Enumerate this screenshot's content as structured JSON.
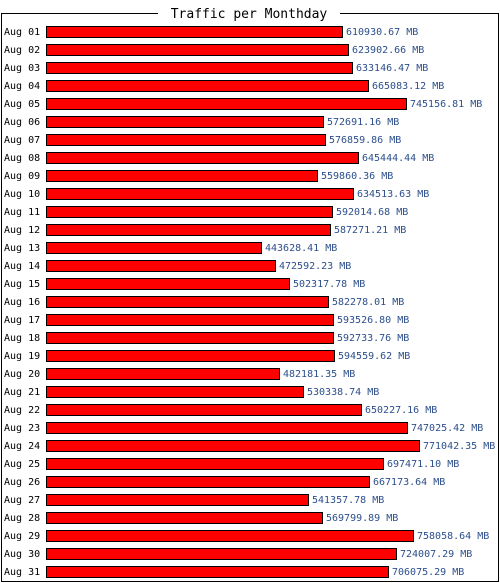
{
  "chart_data": {
    "type": "bar",
    "orientation": "horizontal",
    "title": "Traffic per Monthday",
    "unit": "MB",
    "xlim": [
      0,
      771042.35
    ],
    "grid": false,
    "legend": "none",
    "colors": {
      "bar": "#ff0000",
      "bar_border": "#000000",
      "value_label": "#2b4e8c",
      "frame": "#000000"
    },
    "categories": [
      "Aug 01",
      "Aug 02",
      "Aug 03",
      "Aug 04",
      "Aug 05",
      "Aug 06",
      "Aug 07",
      "Aug 08",
      "Aug 09",
      "Aug 10",
      "Aug 11",
      "Aug 12",
      "Aug 13",
      "Aug 14",
      "Aug 15",
      "Aug 16",
      "Aug 17",
      "Aug 18",
      "Aug 19",
      "Aug 20",
      "Aug 21",
      "Aug 22",
      "Aug 23",
      "Aug 24",
      "Aug 25",
      "Aug 26",
      "Aug 27",
      "Aug 28",
      "Aug 29",
      "Aug 30",
      "Aug 31"
    ],
    "values": [
      610930.67,
      623902.66,
      633146.47,
      665083.12,
      745156.81,
      572691.16,
      576859.86,
      645444.44,
      559860.36,
      634513.63,
      592014.68,
      587271.21,
      443628.41,
      472592.23,
      502317.78,
      582278.01,
      593526.8,
      592733.76,
      594559.62,
      482181.35,
      530338.74,
      650227.16,
      747025.42,
      771042.35,
      697471.1,
      667173.64,
      541357.78,
      569799.89,
      758058.64,
      724007.29,
      706075.29
    ],
    "value_labels": [
      "610930.67 MB",
      "623902.66 MB",
      "633146.47 MB",
      "665083.12 MB",
      "745156.81 MB",
      "572691.16 MB",
      "576859.86 MB",
      "645444.44 MB",
      "559860.36 MB",
      "634513.63 MB",
      "592014.68 MB",
      "587271.21 MB",
      "443628.41 MB",
      "472592.23 MB",
      "502317.78 MB",
      "582278.01 MB",
      "593526.80 MB",
      "592733.76 MB",
      "594559.62 MB",
      "482181.35 MB",
      "530338.74 MB",
      "650227.16 MB",
      "747025.42 MB",
      "771042.35 MB",
      "697471.10 MB",
      "667173.64 MB",
      "541357.78 MB",
      "569799.89 MB",
      "758058.64 MB",
      "724007.29 MB",
      "706075.29 MB"
    ]
  }
}
